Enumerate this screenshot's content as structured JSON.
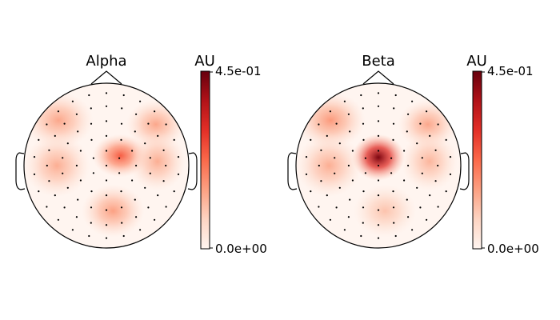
{
  "chart_data": [
    {
      "type": "heatmap",
      "title": "Alpha",
      "colorbar": {
        "unit_label": "AU",
        "max_label": "4.5e-01",
        "min_label": "0.0e+00",
        "vmin": 0.0,
        "vmax": 0.45,
        "colormap": [
          "#fff5f0",
          "#fdd4c2",
          "#fca082",
          "#fb694a",
          "#e32f27",
          "#b11218",
          "#67000d"
        ]
      },
      "hotspots": [
        {
          "region": "center-right",
          "value": 0.24
        },
        {
          "region": "left-frontal",
          "value": 0.14
        },
        {
          "region": "right-frontal",
          "value": 0.14
        },
        {
          "region": "left-temporal",
          "value": 0.13
        },
        {
          "region": "right-temporal",
          "value": 0.13
        },
        {
          "region": "occipital",
          "value": 0.15
        }
      ]
    },
    {
      "type": "heatmap",
      "title": "Beta",
      "colorbar": {
        "unit_label": "AU",
        "max_label": "4.5e-01",
        "min_label": "0.0e+00",
        "vmin": 0.0,
        "vmax": 0.45,
        "colormap": [
          "#fff5f0",
          "#fdd4c2",
          "#fca082",
          "#fb694a",
          "#e32f27",
          "#b11218",
          "#67000d"
        ]
      },
      "hotspots": [
        {
          "region": "center",
          "value": 0.43
        },
        {
          "region": "left-frontal",
          "value": 0.16
        },
        {
          "region": "right-frontal",
          "value": 0.14
        },
        {
          "region": "left-temporal",
          "value": 0.13
        },
        {
          "region": "right-temporal",
          "value": 0.12
        },
        {
          "region": "occipital",
          "value": 0.1
        }
      ]
    }
  ]
}
